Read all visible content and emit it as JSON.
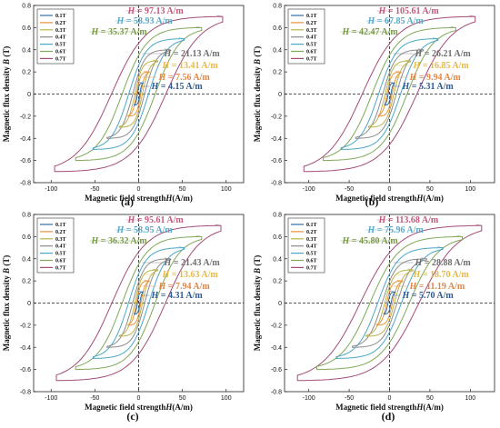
{
  "legend_items": [
    "0.1T",
    "0.2T",
    "0.3T",
    "0.4T",
    "0.5T",
    "0.6T",
    "0.7T"
  ],
  "series_colors": [
    "#2f6ea6",
    "#e8923a",
    "#b9b44a",
    "#8c8c8c",
    "#4aa7c9",
    "#80a85a",
    "#a24c7a"
  ],
  "annotation_colors": [
    "#2f5a8f",
    "#e0874a",
    "#e6b94a",
    "#6e6e6e",
    "#5aa8c8",
    "#7a9a4a",
    "#c05a7a"
  ],
  "chart_data": [
    {
      "type": "line",
      "panel_label": "(a)",
      "xlabel": "Magnetic field strength",
      "xlabel_var": "H",
      "xlabel_unit": "(A/m)",
      "ylabel": "Magnetic flux density ",
      "ylabel_var": "B",
      "ylabel_unit": " (T)",
      "xlim": [
        -120,
        120
      ],
      "ylim": [
        -0.8,
        0.8
      ],
      "xticks": [
        "-100",
        "-50",
        "0",
        "50",
        "100"
      ],
      "xtick_values": [
        -100,
        -50,
        0,
        50,
        100
      ],
      "yticks": [
        "0.8",
        "0.6",
        "0.4",
        "0.2",
        "0",
        "-0.2",
        "-0.4",
        "-0.6",
        "-0.8"
      ],
      "ytick_values": [
        0.8,
        0.6,
        0.4,
        0.2,
        0,
        -0.2,
        -0.4,
        -0.6,
        -0.8
      ],
      "legend": "top-left",
      "series": [
        {
          "name": "0.1T",
          "Bmax": 0.1,
          "Hmax": 5,
          "Hc": 4.15
        },
        {
          "name": "0.2T",
          "Bmax": 0.2,
          "Hmax": 12,
          "Hc": 7.56
        },
        {
          "name": "0.3T",
          "Bmax": 0.3,
          "Hmax": 22,
          "Hc": 13.41
        },
        {
          "name": "0.4T",
          "Bmax": 0.4,
          "Hmax": 36,
          "Hc": 21.13
        },
        {
          "name": "0.5T",
          "Bmax": 0.5,
          "Hmax": 52,
          "Hc": 35.37
        },
        {
          "name": "0.6T",
          "Bmax": 0.6,
          "Hmax": 72,
          "Hc": 58.93
        },
        {
          "name": "0.7T",
          "Bmax": 0.7,
          "Hmax": 96,
          "Hc": 97.13
        }
      ],
      "annotations": [
        {
          "text": "4.15 A/m",
          "color_index": 0,
          "row": 0
        },
        {
          "text": "7.56 A/m",
          "color_index": 1,
          "row": 1
        },
        {
          "text": "13.41 A/m",
          "color_index": 2,
          "row": 2
        },
        {
          "text": "21.13 A/m",
          "color_index": 3,
          "row": 3
        },
        {
          "text": "35.37 A/m",
          "color_index": 5,
          "row": 4
        },
        {
          "text": "58.93 A/m",
          "color_index": 4,
          "row": 5
        },
        {
          "text": "97.13 A/m",
          "color_index": 6,
          "row": 6
        }
      ]
    },
    {
      "type": "line",
      "panel_label": "(b)",
      "xlabel": "Magnetic field strength",
      "xlabel_var": "H",
      "xlabel_unit": "(A/m)",
      "ylabel": "Magnetic flux density ",
      "ylabel_var": "B",
      "ylabel_unit": " (T)",
      "xlim": [
        -130,
        130
      ],
      "ylim": [
        -0.8,
        0.8
      ],
      "xticks": [
        "-100",
        "-50",
        "0",
        "50",
        "100"
      ],
      "xtick_values": [
        -100,
        -50,
        0,
        50,
        100
      ],
      "yticks": [
        "0.8",
        "0.6",
        "0.4",
        "0.2",
        "0",
        "-0.2",
        "-0.4",
        "-0.6",
        "-0.8"
      ],
      "ytick_values": [
        0.8,
        0.6,
        0.4,
        0.2,
        0,
        -0.2,
        -0.4,
        -0.6,
        -0.8
      ],
      "legend": "top-left",
      "series": [
        {
          "name": "0.1T",
          "Bmax": 0.1,
          "Hmax": 6,
          "Hc": 5.31
        },
        {
          "name": "0.2T",
          "Bmax": 0.2,
          "Hmax": 14,
          "Hc": 9.94
        },
        {
          "name": "0.3T",
          "Bmax": 0.3,
          "Hmax": 26,
          "Hc": 16.85
        },
        {
          "name": "0.4T",
          "Bmax": 0.4,
          "Hmax": 42,
          "Hc": 26.21
        },
        {
          "name": "0.5T",
          "Bmax": 0.5,
          "Hmax": 60,
          "Hc": 42.47
        },
        {
          "name": "0.6T",
          "Bmax": 0.6,
          "Hmax": 82,
          "Hc": 67.85
        },
        {
          "name": "0.7T",
          "Bmax": 0.7,
          "Hmax": 106,
          "Hc": 105.61
        }
      ],
      "annotations": [
        {
          "text": "5.31 A/m",
          "color_index": 0,
          "row": 0
        },
        {
          "text": "9.94 A/m",
          "color_index": 1,
          "row": 1
        },
        {
          "text": "16.85 A/m",
          "color_index": 2,
          "row": 2
        },
        {
          "text": "26.21 A/m",
          "color_index": 3,
          "row": 3
        },
        {
          "text": "42.47 A/m",
          "color_index": 5,
          "row": 4
        },
        {
          "text": "67.85 A/m",
          "color_index": 4,
          "row": 5
        },
        {
          "text": "105.61 A/m",
          "color_index": 6,
          "row": 6
        }
      ]
    },
    {
      "type": "line",
      "panel_label": "(c)",
      "xlabel": "Magnetic field strength",
      "xlabel_var": "H",
      "xlabel_unit": "(A/m)",
      "ylabel": "Magnetic flux density ",
      "ylabel_var": "B",
      "ylabel_unit": " (T)",
      "xlim": [
        -120,
        120
      ],
      "ylim": [
        -0.8,
        0.8
      ],
      "xticks": [
        "-100",
        "-50",
        "0",
        "50",
        "100"
      ],
      "xtick_values": [
        -100,
        -50,
        0,
        50,
        100
      ],
      "yticks": [
        "0.8",
        "0.6",
        "0.4",
        "0.2",
        "0",
        "-0.2",
        "-0.4",
        "-0.6",
        "-0.8"
      ],
      "ytick_values": [
        0.8,
        0.6,
        0.4,
        0.2,
        0,
        -0.2,
        -0.4,
        -0.6,
        -0.8
      ],
      "legend": "top-left",
      "series": [
        {
          "name": "0.1T",
          "Bmax": 0.1,
          "Hmax": 5,
          "Hc": 4.31
        },
        {
          "name": "0.2T",
          "Bmax": 0.2,
          "Hmax": 12,
          "Hc": 7.94
        },
        {
          "name": "0.3T",
          "Bmax": 0.3,
          "Hmax": 22,
          "Hc": 13.63
        },
        {
          "name": "0.4T",
          "Bmax": 0.4,
          "Hmax": 36,
          "Hc": 21.43
        },
        {
          "name": "0.5T",
          "Bmax": 0.5,
          "Hmax": 52,
          "Hc": 36.32
        },
        {
          "name": "0.6T",
          "Bmax": 0.6,
          "Hmax": 72,
          "Hc": 58.95
        },
        {
          "name": "0.7T",
          "Bmax": 0.7,
          "Hmax": 94,
          "Hc": 95.61
        }
      ],
      "annotations": [
        {
          "text": "4.31 A/m",
          "color_index": 0,
          "row": 0
        },
        {
          "text": "7.94 A/m",
          "color_index": 1,
          "row": 1
        },
        {
          "text": "13.63 A/m",
          "color_index": 2,
          "row": 2
        },
        {
          "text": "21.43 A/m",
          "color_index": 3,
          "row": 3
        },
        {
          "text": "36.32 A/m",
          "color_index": 5,
          "row": 4
        },
        {
          "text": "58.95 A/m",
          "color_index": 4,
          "row": 5
        },
        {
          "text": "95.61 A/m",
          "color_index": 6,
          "row": 6
        }
      ]
    },
    {
      "type": "line",
      "panel_label": "(d)",
      "xlabel": "Magnetic field strength",
      "xlabel_var": "H",
      "xlabel_unit": "(A/m)",
      "ylabel": "Magnetic flux density ",
      "ylabel_var": "B",
      "ylabel_unit": " (T)",
      "xlim": [
        -130,
        130
      ],
      "ylim": [
        -0.8,
        0.8
      ],
      "xticks": [
        "-100",
        "-50",
        "0",
        "50",
        "100"
      ],
      "xtick_values": [
        -100,
        -50,
        0,
        50,
        100
      ],
      "yticks": [
        "0.8",
        "0.6",
        "0.4",
        "0.2",
        "0",
        "-0.2",
        "-0.4",
        "-0.6",
        "-0.8"
      ],
      "ytick_values": [
        0.8,
        0.6,
        0.4,
        0.2,
        0,
        -0.2,
        -0.4,
        -0.6,
        -0.8
      ],
      "legend": "top-left",
      "series": [
        {
          "name": "0.1T",
          "Bmax": 0.1,
          "Hmax": 7,
          "Hc": 5.7
        },
        {
          "name": "0.2T",
          "Bmax": 0.2,
          "Hmax": 16,
          "Hc": 11.19
        },
        {
          "name": "0.3T",
          "Bmax": 0.3,
          "Hmax": 29,
          "Hc": 18.7
        },
        {
          "name": "0.4T",
          "Bmax": 0.4,
          "Hmax": 46,
          "Hc": 28.88
        },
        {
          "name": "0.5T",
          "Bmax": 0.5,
          "Hmax": 66,
          "Hc": 45.8
        },
        {
          "name": "0.6T",
          "Bmax": 0.6,
          "Hmax": 90,
          "Hc": 75.96
        },
        {
          "name": "0.7T",
          "Bmax": 0.7,
          "Hmax": 114,
          "Hc": 113.68
        }
      ],
      "annotations": [
        {
          "text": "5.70 A/m",
          "color_index": 0,
          "row": 0
        },
        {
          "text": "11.19 A/m",
          "color_index": 1,
          "row": 1
        },
        {
          "text": "18.70 A/m",
          "color_index": 2,
          "row": 2
        },
        {
          "text": "28.88 A/m",
          "color_index": 3,
          "row": 3
        },
        {
          "text": "45.80 A/m",
          "color_index": 5,
          "row": 4
        },
        {
          "text": "75.96 A/m",
          "color_index": 4,
          "row": 5
        },
        {
          "text": "113.68 A/m",
          "color_index": 6,
          "row": 6
        }
      ]
    }
  ]
}
